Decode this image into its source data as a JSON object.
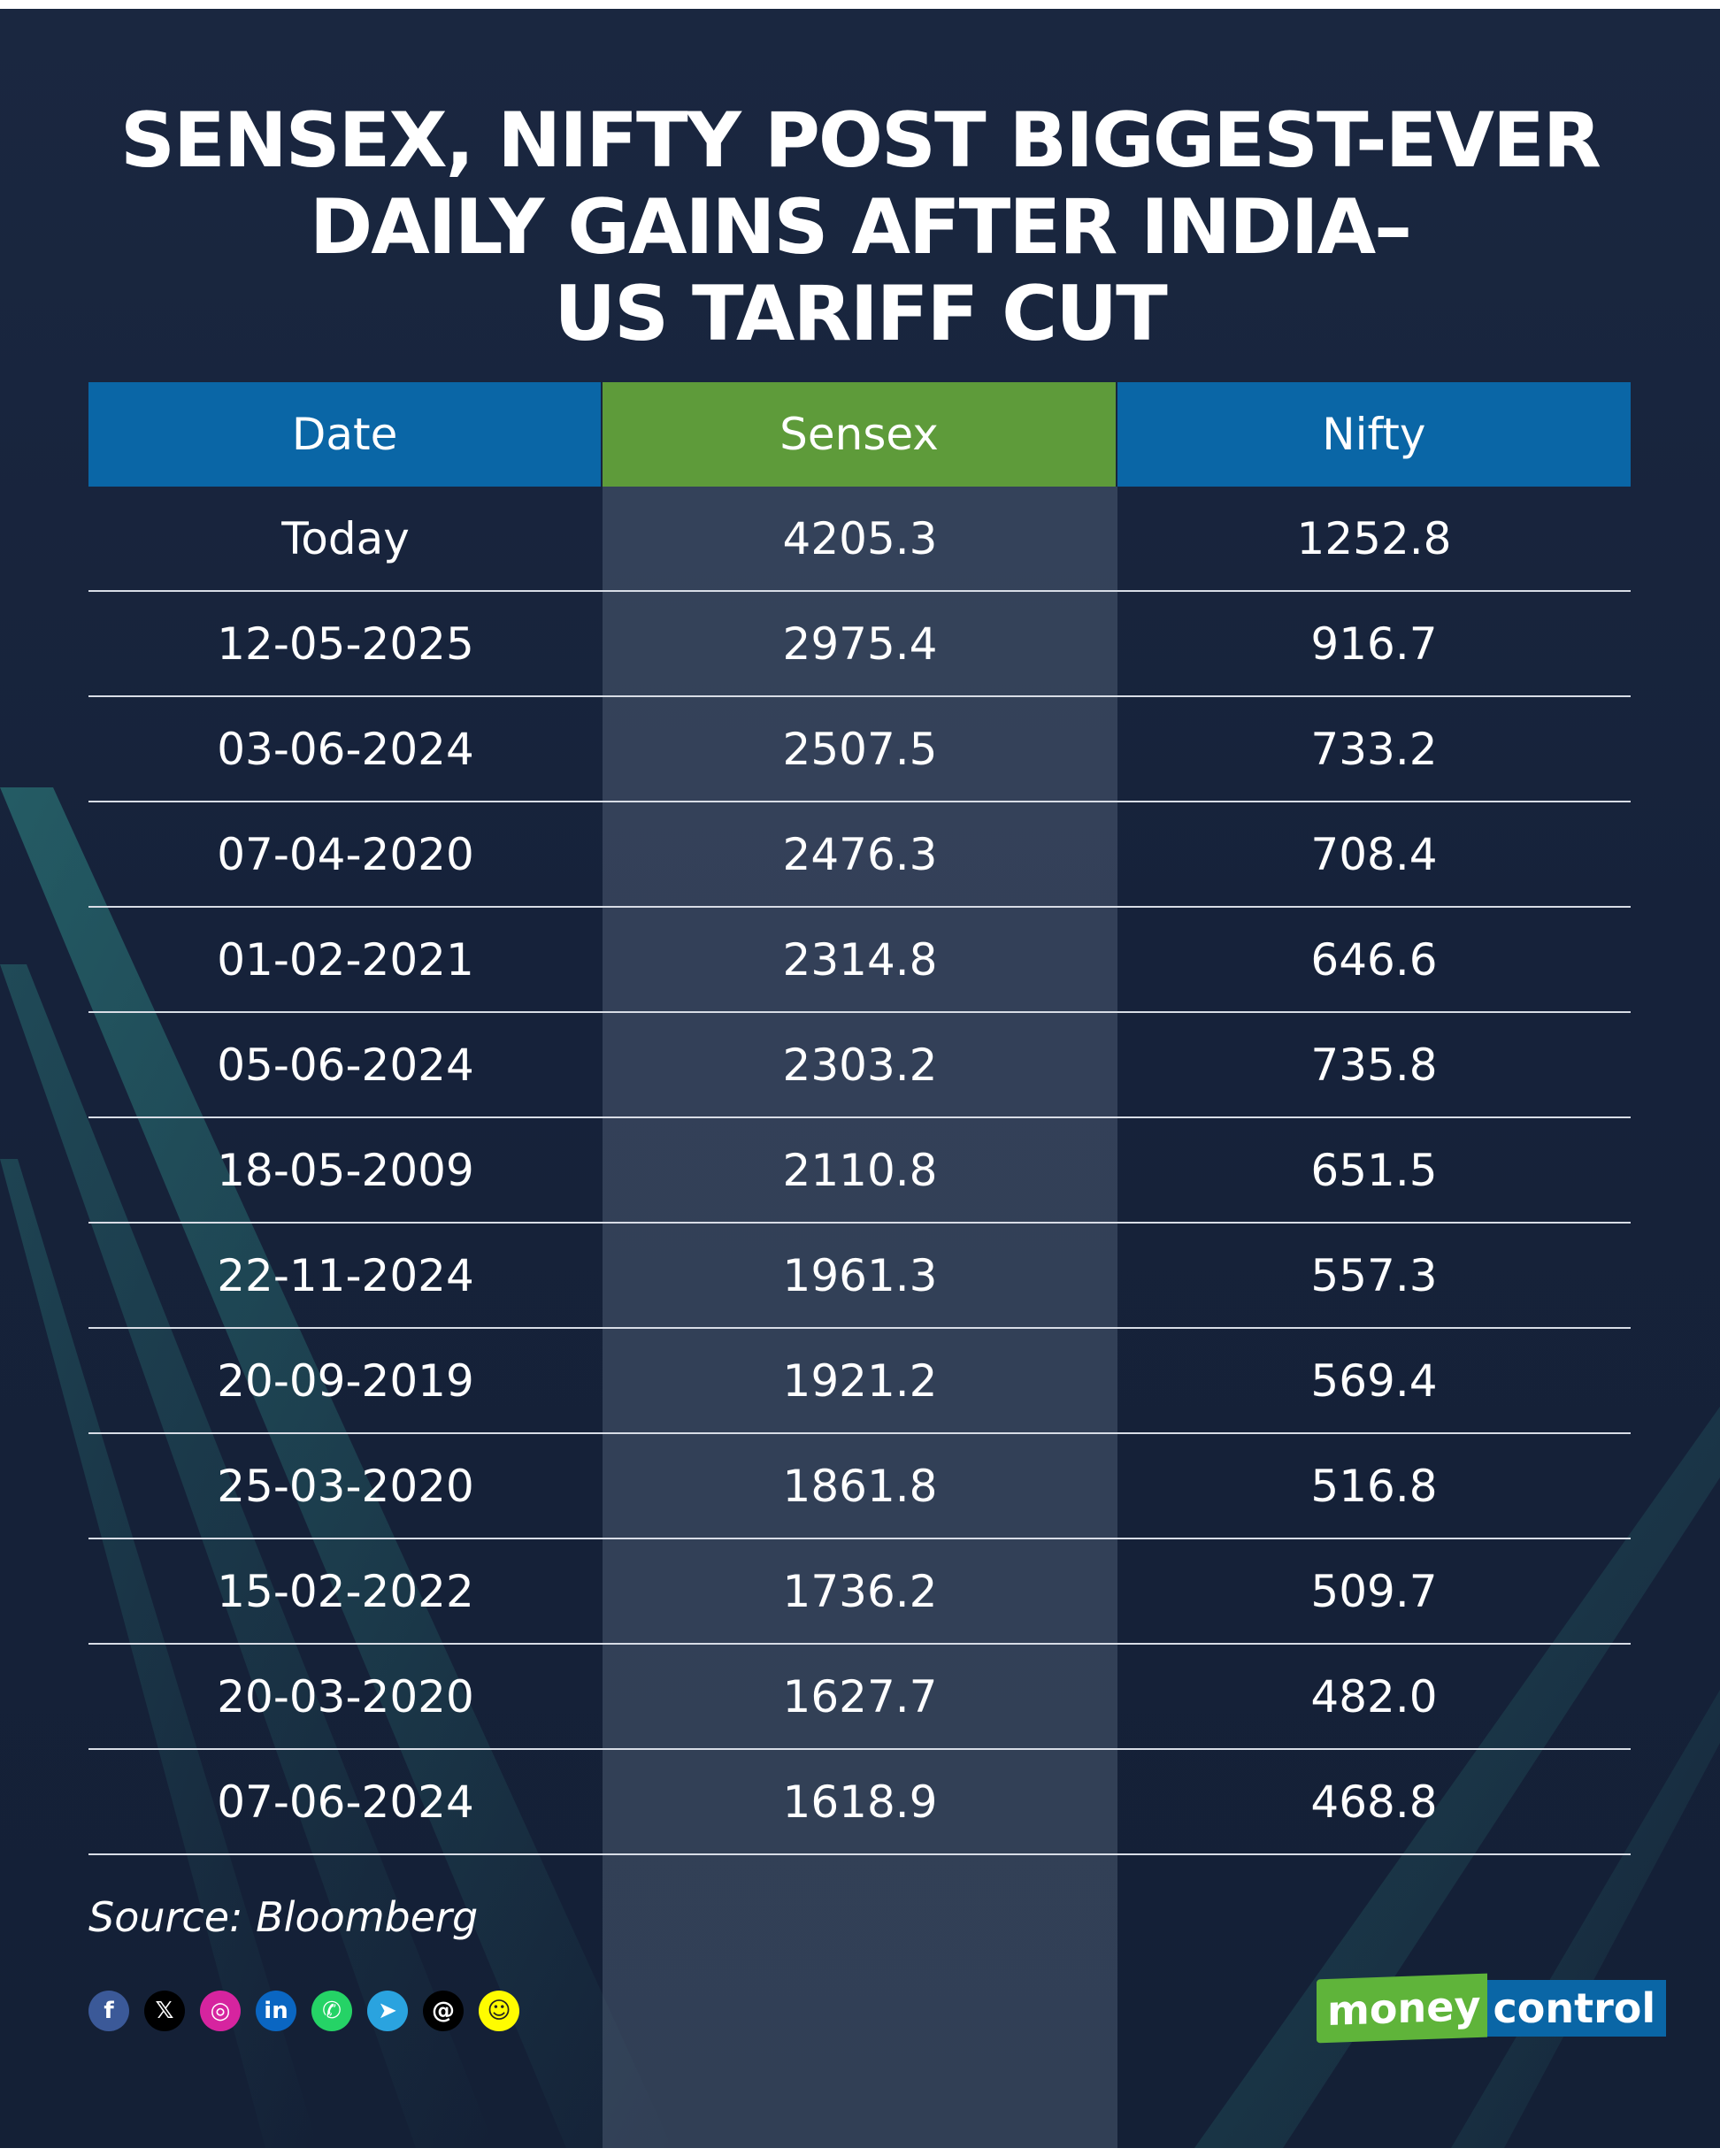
{
  "title_lines": [
    "SENSEX, NIFTY POST BIGGEST-EVER",
    "DAILY GAINS AFTER INDIA–",
    "US TARIFF CUT"
  ],
  "colors": {
    "background": "#16223a",
    "header_blue": "#0a66a6",
    "header_green": "#5e9b3a",
    "text": "#ffffff",
    "logo_green": "#5fb43a"
  },
  "chart_data": {
    "type": "table",
    "title": "SENSEX, NIFTY POST BIGGEST-EVER DAILY GAINS AFTER INDIA–US TARIFF CUT",
    "columns": [
      "Date",
      "Sensex",
      "Nifty"
    ],
    "rows": [
      [
        "Today",
        "4205.3",
        "1252.8"
      ],
      [
        "12-05-2025",
        "2975.4",
        "916.7"
      ],
      [
        "03-06-2024",
        "2507.5",
        "733.2"
      ],
      [
        "07-04-2020",
        "2476.3",
        "708.4"
      ],
      [
        "01-02-2021",
        "2314.8",
        "646.6"
      ],
      [
        "05-06-2024",
        "2303.2",
        "735.8"
      ],
      [
        "18-05-2009",
        "2110.8",
        "651.5"
      ],
      [
        "22-11-2024",
        "1961.3",
        "557.3"
      ],
      [
        "20-09-2019",
        "1921.2",
        "569.4"
      ],
      [
        "25-03-2020",
        "1861.8",
        "516.8"
      ],
      [
        "15-02-2022",
        "1736.2",
        "509.7"
      ],
      [
        "20-03-2020",
        "1627.7",
        "482.0"
      ],
      [
        "07-06-2024",
        "1618.9",
        "468.8"
      ]
    ]
  },
  "source": "Source: Bloomberg",
  "social_icons": [
    {
      "name": "facebook-icon",
      "glyph": "f",
      "color": "#3b5998"
    },
    {
      "name": "x-icon",
      "glyph": "𝕏",
      "color": "#000000"
    },
    {
      "name": "instagram-icon",
      "glyph": "◎",
      "color": "#d6249f"
    },
    {
      "name": "linkedin-icon",
      "glyph": "in",
      "color": "#0a66c2"
    },
    {
      "name": "whatsapp-icon",
      "glyph": "✆",
      "color": "#25d366"
    },
    {
      "name": "telegram-icon",
      "glyph": "➤",
      "color": "#2aa3df"
    },
    {
      "name": "threads-icon",
      "glyph": "@",
      "color": "#000000"
    },
    {
      "name": "snapchat-icon",
      "glyph": "☺",
      "color": "#fffc00"
    }
  ],
  "logo": {
    "left": "money",
    "right": "control"
  }
}
